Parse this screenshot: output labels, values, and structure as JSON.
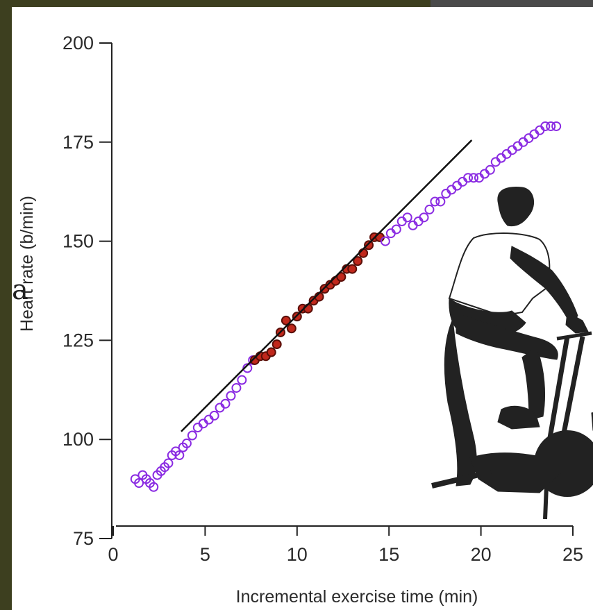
{
  "chart_data": {
    "type": "scatter",
    "xlabel": "Incremental exercise time (min)",
    "ylabel": "Heart rate (b/min)",
    "xlim": [
      0,
      25
    ],
    "ylim": [
      75,
      200
    ],
    "x_ticks": [
      "0",
      "5",
      "10",
      "15",
      "20",
      "25"
    ],
    "y_ticks": [
      "75",
      "100",
      "125",
      "150",
      "175",
      "200"
    ],
    "series": [
      {
        "color": "#8a2be2",
        "marker": "open-circle",
        "points": [
          [
            1.2,
            90
          ],
          [
            1.4,
            89
          ],
          [
            1.6,
            91
          ],
          [
            1.8,
            90
          ],
          [
            2.0,
            89
          ],
          [
            2.2,
            88
          ],
          [
            2.4,
            91
          ],
          [
            2.6,
            92
          ],
          [
            2.8,
            93
          ],
          [
            3.0,
            94
          ],
          [
            3.2,
            96
          ],
          [
            3.4,
            97
          ],
          [
            3.6,
            96
          ],
          [
            3.8,
            98
          ],
          [
            4.0,
            99
          ],
          [
            4.3,
            101
          ],
          [
            4.6,
            103
          ],
          [
            4.9,
            104
          ],
          [
            5.2,
            105
          ],
          [
            5.5,
            106
          ],
          [
            5.8,
            108
          ],
          [
            6.1,
            109
          ],
          [
            6.4,
            111
          ],
          [
            6.7,
            113
          ],
          [
            7.0,
            115
          ],
          [
            7.3,
            118
          ],
          [
            7.6,
            120
          ]
        ]
      },
      {
        "color": "#c0281c",
        "marker": "filled-circle",
        "points": [
          [
            7.7,
            120
          ],
          [
            8.0,
            121
          ],
          [
            8.3,
            121
          ],
          [
            8.6,
            122
          ],
          [
            8.9,
            124
          ],
          [
            9.1,
            127
          ],
          [
            9.4,
            130
          ],
          [
            9.7,
            128
          ],
          [
            10.0,
            131
          ],
          [
            10.3,
            133
          ],
          [
            10.6,
            133
          ],
          [
            10.9,
            135
          ],
          [
            11.2,
            136
          ],
          [
            11.5,
            138
          ],
          [
            11.8,
            139
          ],
          [
            12.1,
            140
          ],
          [
            12.4,
            141
          ],
          [
            12.7,
            143
          ],
          [
            13.0,
            143
          ],
          [
            13.3,
            145
          ],
          [
            13.6,
            147
          ],
          [
            13.9,
            149
          ],
          [
            14.2,
            151
          ],
          [
            14.5,
            151
          ]
        ]
      },
      {
        "color": "#8a2be2",
        "marker": "open-circle",
        "points": [
          [
            14.8,
            150
          ],
          [
            15.1,
            152
          ],
          [
            15.4,
            153
          ],
          [
            15.7,
            155
          ],
          [
            16.0,
            156
          ],
          [
            16.3,
            154
          ],
          [
            16.6,
            155
          ],
          [
            16.9,
            156
          ],
          [
            17.2,
            158
          ],
          [
            17.5,
            160
          ],
          [
            17.8,
            160
          ],
          [
            18.1,
            162
          ],
          [
            18.4,
            163
          ],
          [
            18.7,
            164
          ],
          [
            19.0,
            165
          ],
          [
            19.3,
            166
          ],
          [
            19.6,
            166
          ],
          [
            19.9,
            166
          ],
          [
            20.2,
            167
          ],
          [
            20.5,
            168
          ],
          [
            20.8,
            170
          ],
          [
            21.1,
            171
          ],
          [
            21.4,
            172
          ],
          [
            21.7,
            173
          ],
          [
            22.0,
            174
          ],
          [
            22.3,
            175
          ],
          [
            22.6,
            176
          ],
          [
            22.9,
            177
          ],
          [
            23.2,
            178
          ],
          [
            23.5,
            179
          ],
          [
            23.8,
            179
          ],
          [
            24.1,
            179
          ]
        ]
      }
    ],
    "trend_line": {
      "x": [
        3.7,
        19.5
      ],
      "y": [
        102,
        175.5
      ]
    }
  },
  "illustration": "person-on-exercise-bike-silhouette",
  "clipped_text": "a"
}
